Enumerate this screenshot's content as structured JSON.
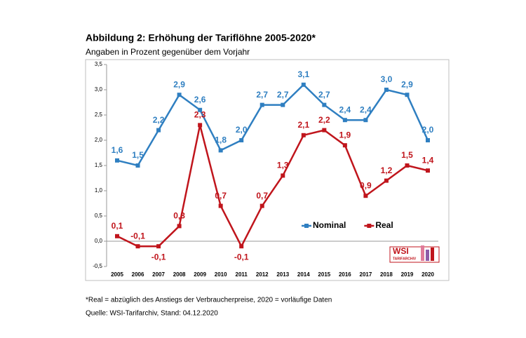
{
  "chart_data": {
    "type": "line",
    "title": "Abbildung 2: Erhöhung der Tariflöhne 2005-2020*",
    "subtitle": "Angaben in Prozent gegenüber dem Vorjahr",
    "categories": [
      "2005",
      "2006",
      "2007",
      "2008",
      "2009",
      "2010",
      "2011",
      "2012",
      "2013",
      "2014",
      "2015",
      "2016",
      "2017",
      "2018",
      "2019",
      "2020"
    ],
    "series": [
      {
        "name": "Nominal",
        "color": "#2f7fc1",
        "values": [
          1.6,
          1.5,
          2.2,
          2.9,
          2.6,
          1.8,
          2.0,
          2.7,
          2.7,
          3.1,
          2.7,
          2.4,
          2.4,
          3.0,
          2.9,
          2.0
        ],
        "value_labels": [
          "1,6",
          "1,5",
          "2,2",
          "2,9",
          "2,6",
          "1,8",
          "2,0",
          "2,7",
          "2,7",
          "3,1",
          "2,7",
          "2,4",
          "2,4",
          "3,0",
          "2,9",
          "2,0"
        ]
      },
      {
        "name": "Real",
        "color": "#c0151c",
        "values": [
          0.1,
          -0.1,
          -0.1,
          0.3,
          2.3,
          0.7,
          -0.1,
          0.7,
          1.3,
          2.1,
          2.2,
          1.9,
          0.9,
          1.2,
          1.5,
          1.4
        ],
        "value_labels": [
          "0,1",
          "-0,1",
          "-0,1",
          "0,3",
          "2,3",
          "0,7",
          "-0,1",
          "0,7",
          "1,3",
          "2,1",
          "2,2",
          "1,9",
          "0,9",
          "1,2",
          "1,5",
          "1,4"
        ]
      }
    ],
    "ylim": [
      -0.5,
      3.5
    ],
    "yticks": [
      {
        "value": -0.5,
        "label": "-0,5"
      },
      {
        "value": 0,
        "label": "0,0"
      },
      {
        "value": 0.5,
        "label": "0,5"
      },
      {
        "value": 1,
        "label": "1,0"
      },
      {
        "value": 1.5,
        "label": "1,5"
      },
      {
        "value": 2,
        "label": "2,0"
      },
      {
        "value": 2.5,
        "label": "2,5"
      },
      {
        "value": 3,
        "label": "3,0"
      },
      {
        "value": 3.5,
        "label": "3,5"
      }
    ],
    "grid": false,
    "legend": "center",
    "footnotes": [
      "*Real = abzüglich des Anstiegs der Verbraucherpreise, 2020 = vorläufige Daten",
      "Quelle: WSI-Tarifarchiv, Stand: 04.12.2020"
    ]
  },
  "logo": {
    "text": "WSI",
    "subtext": "TARIFARCHIV"
  }
}
